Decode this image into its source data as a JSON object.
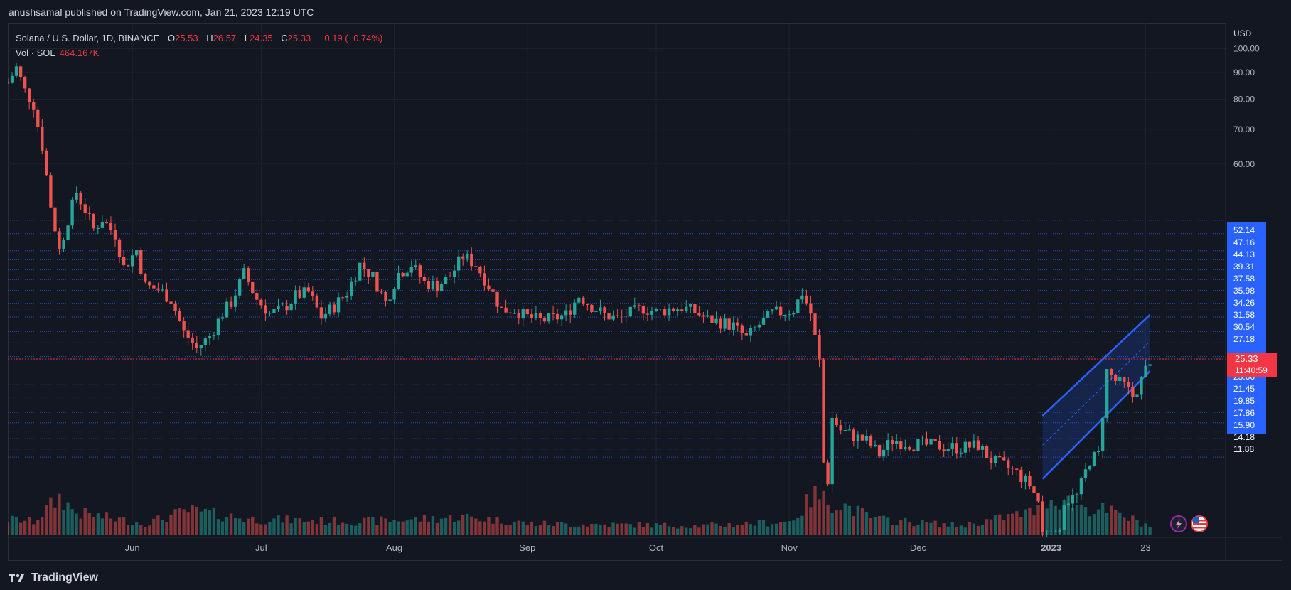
{
  "header": {
    "publisher": "anushsamal published on TradingView.com, Jan 21, 2023 12:19 UTC"
  },
  "legend": {
    "symbol": "Solana / U.S. Dollar, 1D, BINANCE",
    "open_label": "O",
    "open": "25.53",
    "high_label": "H",
    "high": "26.57",
    "low_label": "L",
    "low": "24.35",
    "close_label": "C",
    "close": "25.33",
    "change": "−0.19 (−0.74%)",
    "volume_label": "Vol · SOL",
    "volume": "464.167K"
  },
  "footer": {
    "brand": "TradingView",
    "logo_icon": "tradingview-logo-icon"
  },
  "toolbar_icons": [
    "lightning-icon",
    "us-flag-icon"
  ],
  "colors": {
    "background": "#131722",
    "up": "#26a69a",
    "down": "#ef5350",
    "level_line": "#2962ff",
    "channel": "#2962ff",
    "price_label": "#f23645"
  },
  "chart_data": {
    "type": "candlestick",
    "title": "Solana / U.S. Dollar, 1D, BINANCE",
    "currency_label": "USD",
    "ylim": [
      11.5,
      105
    ],
    "y_scale": "log",
    "y_ticks": [
      "100.00",
      "90.00",
      "80.00",
      "70.00",
      "60.00"
    ],
    "level_labels": [
      "52.14",
      "47.16",
      "44.13",
      "39.31",
      "37.58",
      "35.98",
      "34.26",
      "31.58",
      "30.54",
      "27.18",
      "23.66",
      "21.45",
      "19.85",
      "17.86",
      "15.90",
      "14.18",
      "11.88"
    ],
    "level_lines": [
      46.8,
      44.1,
      40.9,
      39.3,
      37.6,
      36.0,
      34.3,
      32.4,
      31.6,
      30.5,
      28.6,
      27.2,
      25.6,
      23.6,
      22.6,
      21.4,
      20.0,
      19.1,
      18.4,
      17.8,
      17.0,
      16.4
    ],
    "current_price": "25.33",
    "current_price_value": 25.33,
    "countdown": "11:40:59",
    "x_ticks": [
      "Jun",
      "Jul",
      "Aug",
      "Sep",
      "Oct",
      "Nov",
      "Dec",
      "2023",
      "23"
    ],
    "x_tick_days": [
      17,
      47,
      78,
      109,
      139,
      170,
      200,
      231,
      253
    ],
    "x_range_days": [
      -12,
      265
    ],
    "closes": [
      {
        "day": -12,
        "close": 86.0
      },
      {
        "day": -10,
        "close": 92.0
      },
      {
        "day": -8,
        "close": 83.0
      },
      {
        "day": -6,
        "close": 78.0
      },
      {
        "day": -4,
        "close": 65.0
      },
      {
        "day": -2,
        "close": 50.0
      },
      {
        "day": 0,
        "close": 41.0
      },
      {
        "day": 2,
        "close": 47.0
      },
      {
        "day": 4,
        "close": 53.0
      },
      {
        "day": 6,
        "close": 49.0
      },
      {
        "day": 8,
        "close": 45.0
      },
      {
        "day": 10,
        "close": 47.0
      },
      {
        "day": 13,
        "close": 44.0
      },
      {
        "day": 15,
        "close": 38.0
      },
      {
        "day": 18,
        "close": 41.0
      },
      {
        "day": 20,
        "close": 35.0
      },
      {
        "day": 23,
        "close": 34.5
      },
      {
        "day": 26,
        "close": 33.0
      },
      {
        "day": 29,
        "close": 28.5
      },
      {
        "day": 32,
        "close": 26.5
      },
      {
        "day": 35,
        "close": 28.0
      },
      {
        "day": 38,
        "close": 31.0
      },
      {
        "day": 40,
        "close": 32.5
      },
      {
        "day": 43,
        "close": 37.0
      },
      {
        "day": 46,
        "close": 33.0
      },
      {
        "day": 49,
        "close": 31.0
      },
      {
        "day": 52,
        "close": 31.5
      },
      {
        "day": 55,
        "close": 33.5
      },
      {
        "day": 58,
        "close": 34.0
      },
      {
        "day": 61,
        "close": 30.5
      },
      {
        "day": 64,
        "close": 32.0
      },
      {
        "day": 67,
        "close": 34.0
      },
      {
        "day": 70,
        "close": 38.5
      },
      {
        "day": 73,
        "close": 36.5
      },
      {
        "day": 76,
        "close": 32.5
      },
      {
        "day": 79,
        "close": 37.0
      },
      {
        "day": 82,
        "close": 38.5
      },
      {
        "day": 85,
        "close": 35.5
      },
      {
        "day": 88,
        "close": 35.0
      },
      {
        "day": 91,
        "close": 36.5
      },
      {
        "day": 94,
        "close": 40.0
      },
      {
        "day": 97,
        "close": 38.5
      },
      {
        "day": 100,
        "close": 35.0
      },
      {
        "day": 103,
        "close": 31.5
      },
      {
        "day": 106,
        "close": 31.5
      },
      {
        "day": 109,
        "close": 30.5
      },
      {
        "day": 112,
        "close": 30.0
      },
      {
        "day": 115,
        "close": 30.3
      },
      {
        "day": 118,
        "close": 30.8
      },
      {
        "day": 121,
        "close": 33.5
      },
      {
        "day": 124,
        "close": 32.0
      },
      {
        "day": 127,
        "close": 30.8
      },
      {
        "day": 130,
        "close": 30.3
      },
      {
        "day": 133,
        "close": 31.0
      },
      {
        "day": 136,
        "close": 31.7
      },
      {
        "day": 139,
        "close": 31.2
      },
      {
        "day": 142,
        "close": 31.6
      },
      {
        "day": 145,
        "close": 31.8
      },
      {
        "day": 148,
        "close": 31.2
      },
      {
        "day": 151,
        "close": 30.2
      },
      {
        "day": 154,
        "close": 29.8
      },
      {
        "day": 157,
        "close": 29.3
      },
      {
        "day": 160,
        "close": 27.8
      },
      {
        "day": 163,
        "close": 29.5
      },
      {
        "day": 166,
        "close": 31.0
      },
      {
        "day": 169,
        "close": 31.2
      },
      {
        "day": 171,
        "close": 31.5
      },
      {
        "day": 173,
        "close": 34.0
      },
      {
        "day": 175,
        "close": 31.0
      },
      {
        "day": 177,
        "close": 25.0
      },
      {
        "day": 178,
        "close": 16.0
      },
      {
        "day": 179,
        "close": 14.8
      },
      {
        "day": 180,
        "close": 19.5
      },
      {
        "day": 182,
        "close": 18.5
      },
      {
        "day": 185,
        "close": 18.0
      },
      {
        "day": 188,
        "close": 17.6
      },
      {
        "day": 191,
        "close": 16.6
      },
      {
        "day": 194,
        "close": 17.7
      },
      {
        "day": 198,
        "close": 17.4
      },
      {
        "day": 202,
        "close": 17.3
      },
      {
        "day": 206,
        "close": 17.2
      },
      {
        "day": 210,
        "close": 17.1
      },
      {
        "day": 214,
        "close": 17.3
      },
      {
        "day": 217,
        "close": 16.2
      },
      {
        "day": 220,
        "close": 15.8
      },
      {
        "day": 223,
        "close": 15.3
      },
      {
        "day": 226,
        "close": 14.5
      },
      {
        "day": 228,
        "close": 13.5
      },
      {
        "day": 230,
        "close": 9.8
      },
      {
        "day": 232,
        "close": 11.0
      },
      {
        "day": 234,
        "close": 13.5
      },
      {
        "day": 237,
        "close": 13.8
      },
      {
        "day": 240,
        "close": 16.2
      },
      {
        "day": 242,
        "close": 16.6
      },
      {
        "day": 244,
        "close": 24.0
      },
      {
        "day": 246,
        "close": 23.0
      },
      {
        "day": 248,
        "close": 22.5
      },
      {
        "day": 250,
        "close": 21.5
      },
      {
        "day": 252,
        "close": 23.0
      },
      {
        "day": 254,
        "close": 25.33
      }
    ],
    "volume_series": [
      {
        "day": -12,
        "v": 0.35
      },
      {
        "day": -6,
        "v": 0.3
      },
      {
        "day": 0,
        "v": 0.85
      },
      {
        "day": 4,
        "v": 0.5
      },
      {
        "day": 20,
        "v": 0.25
      },
      {
        "day": 30,
        "v": 0.55
      },
      {
        "day": 45,
        "v": 0.35
      },
      {
        "day": 70,
        "v": 0.3
      },
      {
        "day": 95,
        "v": 0.4
      },
      {
        "day": 110,
        "v": 0.25
      },
      {
        "day": 150,
        "v": 0.2
      },
      {
        "day": 170,
        "v": 0.3
      },
      {
        "day": 173,
        "v": 0.55
      },
      {
        "day": 176,
        "v": 1.0
      },
      {
        "day": 178,
        "v": 0.8
      },
      {
        "day": 182,
        "v": 0.7
      },
      {
        "day": 190,
        "v": 0.35
      },
      {
        "day": 210,
        "v": 0.2
      },
      {
        "day": 228,
        "v": 0.55
      },
      {
        "day": 232,
        "v": 0.85
      },
      {
        "day": 240,
        "v": 0.6
      },
      {
        "day": 244,
        "v": 0.55
      },
      {
        "day": 254,
        "v": 0.2
      }
    ],
    "channel": {
      "upper": [
        [
          229,
          19.7
        ],
        [
          254,
          30.8
        ]
      ],
      "lower": [
        [
          229,
          14.9
        ],
        [
          254,
          24.0
        ]
      ]
    }
  }
}
